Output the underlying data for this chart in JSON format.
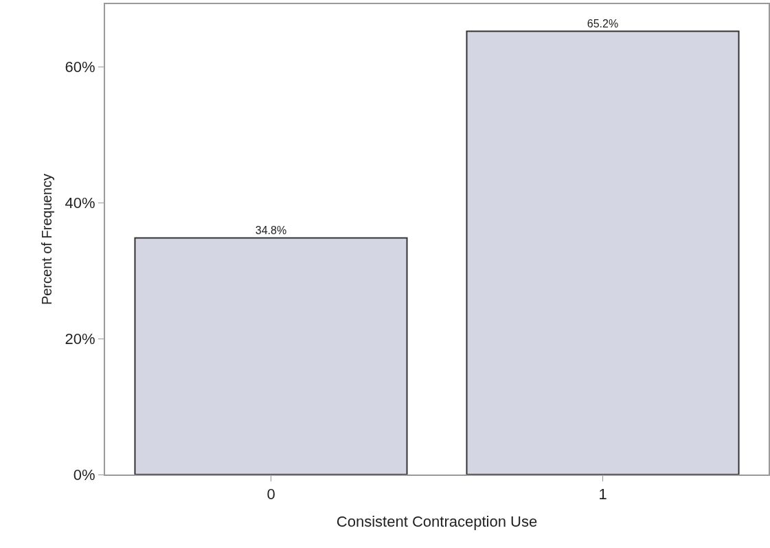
{
  "chart_data": {
    "type": "bar",
    "xlabel": "Consistent Contraception Use",
    "ylabel": "Percent of Frequency",
    "categories": [
      "0",
      "1"
    ],
    "series": [
      {
        "color": "#d4d6e3",
        "values": [
          34.8,
          65.2
        ],
        "value_labels": [
          "34.8%",
          "65.2%"
        ]
      }
    ],
    "ylim": [
      0,
      69.2
    ],
    "yticks": [
      {
        "value": 0,
        "label": "0%"
      },
      {
        "value": 20,
        "label": "20%"
      },
      {
        "value": 40,
        "label": "40%"
      },
      {
        "value": 60,
        "label": "60%"
      }
    ],
    "grid": false,
    "legend": false
  }
}
